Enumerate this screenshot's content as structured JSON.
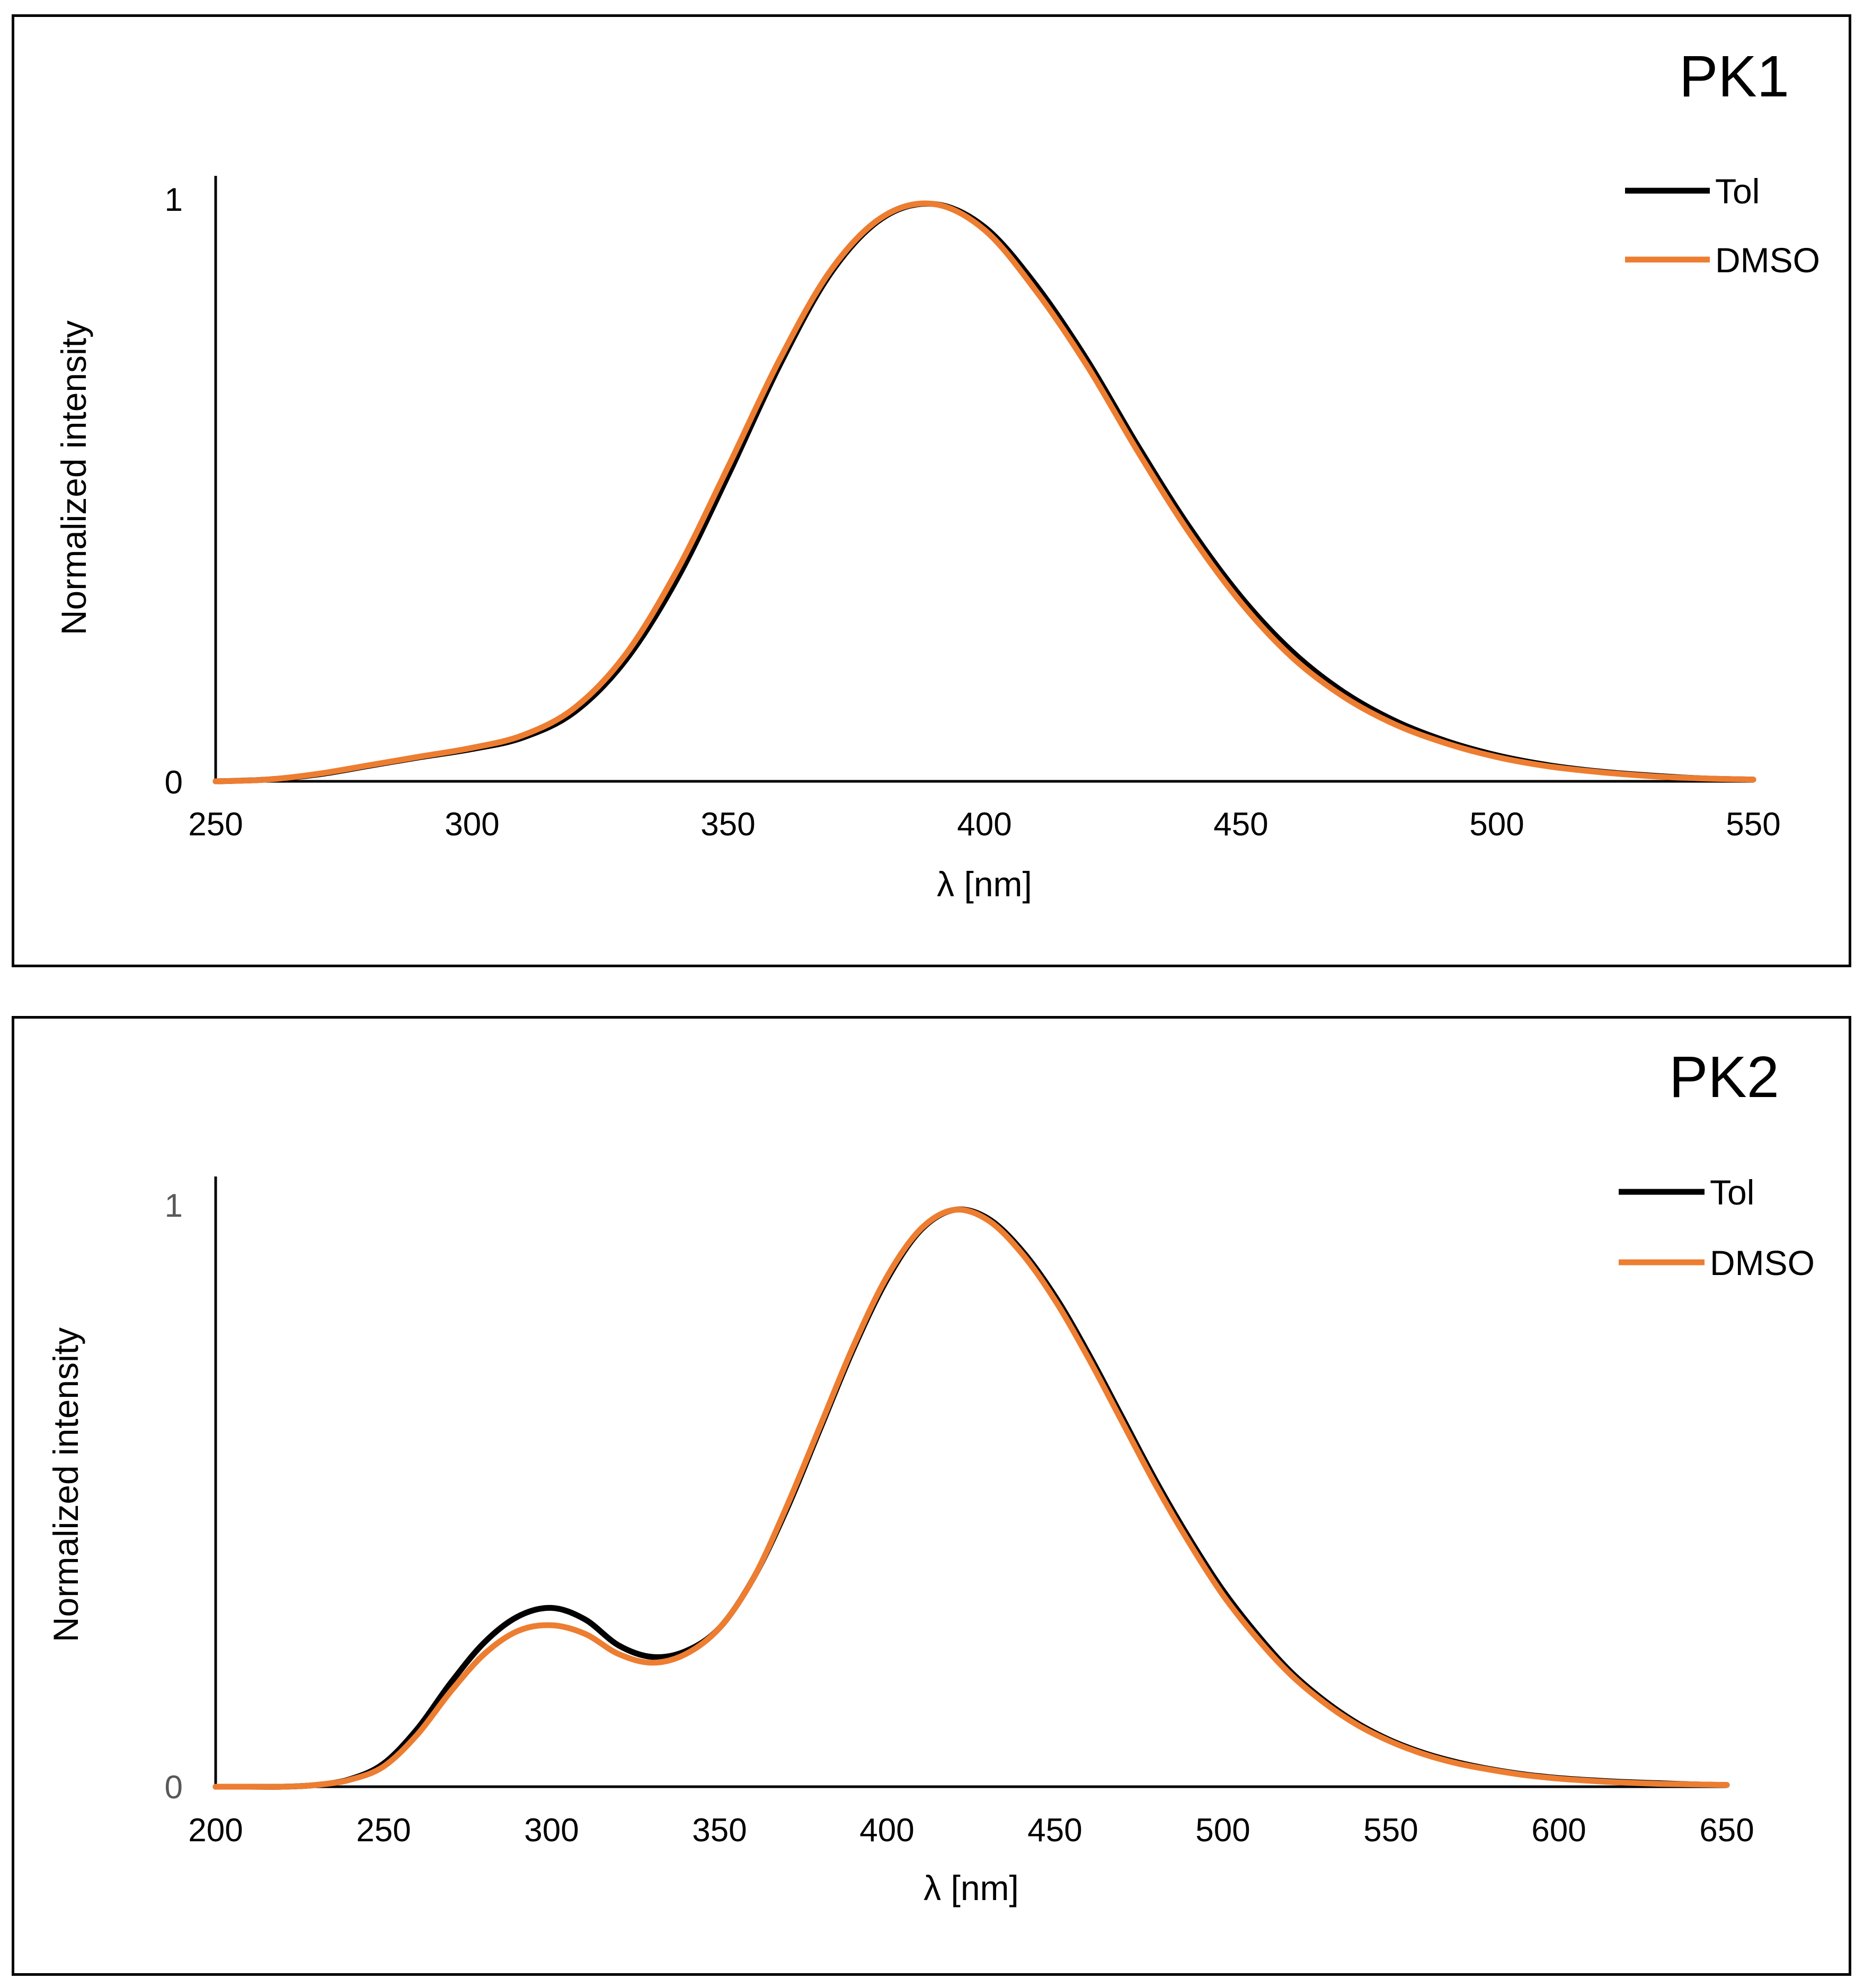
{
  "colors": {
    "tol": "#000000",
    "dmso": "#ED7D31"
  },
  "chart_data": [
    {
      "type": "line",
      "title": "PK1",
      "xlabel": "λ [nm]",
      "ylabel": "Normalized intensity",
      "xlim": [
        250,
        550
      ],
      "ylim": [
        0,
        1
      ],
      "xticks": [
        "250",
        "300",
        "350",
        "400",
        "450",
        "500",
        "550"
      ],
      "yticks": [
        "0",
        "1"
      ],
      "legend": [
        "Tol",
        "DMSO"
      ],
      "series": [
        {
          "name": "Tol",
          "x": [
            250,
            260,
            270,
            280,
            290,
            300,
            310,
            320,
            330,
            340,
            350,
            360,
            370,
            380,
            390,
            400,
            410,
            420,
            430,
            440,
            450,
            460,
            470,
            480,
            490,
            500,
            510,
            520,
            530,
            540,
            550
          ],
          "y": [
            0.0,
            0.003,
            0.012,
            0.027,
            0.042,
            0.056,
            0.076,
            0.12,
            0.21,
            0.35,
            0.53,
            0.72,
            0.88,
            0.975,
            1.0,
            0.96,
            0.86,
            0.73,
            0.58,
            0.44,
            0.32,
            0.225,
            0.155,
            0.105,
            0.07,
            0.045,
            0.028,
            0.017,
            0.01,
            0.005,
            0.003
          ]
        },
        {
          "name": "DMSO",
          "x": [
            250,
            260,
            270,
            280,
            290,
            300,
            310,
            320,
            330,
            340,
            350,
            360,
            370,
            380,
            390,
            400,
            410,
            420,
            430,
            440,
            450,
            460,
            470,
            480,
            490,
            500,
            510,
            520,
            530,
            540,
            550
          ],
          "y": [
            0.0,
            0.003,
            0.013,
            0.028,
            0.043,
            0.058,
            0.08,
            0.127,
            0.22,
            0.365,
            0.545,
            0.73,
            0.885,
            0.977,
            1.0,
            0.955,
            0.85,
            0.72,
            0.57,
            0.43,
            0.31,
            0.215,
            0.147,
            0.099,
            0.066,
            0.042,
            0.026,
            0.016,
            0.009,
            0.005,
            0.003
          ]
        }
      ]
    },
    {
      "type": "line",
      "title": "PK2",
      "xlabel": "λ [nm]",
      "ylabel": "Normalized intensity",
      "xlim": [
        200,
        650
      ],
      "ylim": [
        0,
        1
      ],
      "xticks": [
        "200",
        "250",
        "300",
        "350",
        "400",
        "450",
        "500",
        "550",
        "600",
        "650"
      ],
      "yticks": [
        "0",
        "1"
      ],
      "legend": [
        "Tol",
        "DMSO"
      ],
      "series": [
        {
          "name": "Tol",
          "x": [
            200,
            210,
            220,
            230,
            240,
            250,
            260,
            270,
            280,
            290,
            300,
            310,
            320,
            330,
            340,
            350,
            360,
            370,
            380,
            390,
            400,
            410,
            420,
            430,
            440,
            450,
            460,
            470,
            480,
            490,
            500,
            510,
            520,
            530,
            540,
            550,
            560,
            570,
            580,
            590,
            600,
            610,
            620,
            630,
            640,
            650
          ],
          "y": [
            0.0,
            0.0,
            0.0,
            0.003,
            0.013,
            0.04,
            0.1,
            0.18,
            0.25,
            0.295,
            0.31,
            0.29,
            0.245,
            0.225,
            0.235,
            0.275,
            0.36,
            0.48,
            0.62,
            0.76,
            0.88,
            0.965,
            1.0,
            0.985,
            0.93,
            0.85,
            0.75,
            0.64,
            0.53,
            0.43,
            0.34,
            0.265,
            0.2,
            0.15,
            0.11,
            0.08,
            0.058,
            0.042,
            0.03,
            0.021,
            0.015,
            0.011,
            0.008,
            0.006,
            0.004,
            0.003
          ]
        },
        {
          "name": "DMSO",
          "x": [
            200,
            210,
            220,
            230,
            240,
            250,
            260,
            270,
            280,
            290,
            300,
            310,
            320,
            330,
            340,
            350,
            360,
            370,
            380,
            390,
            400,
            410,
            420,
            430,
            440,
            450,
            460,
            470,
            480,
            490,
            500,
            510,
            520,
            530,
            540,
            550,
            560,
            570,
            580,
            590,
            600,
            610,
            620,
            630,
            640,
            650
          ],
          "y": [
            0.0,
            0.0,
            0.0,
            0.003,
            0.012,
            0.035,
            0.09,
            0.165,
            0.23,
            0.27,
            0.28,
            0.265,
            0.23,
            0.215,
            0.23,
            0.275,
            0.36,
            0.485,
            0.625,
            0.765,
            0.885,
            0.967,
            1.0,
            0.982,
            0.925,
            0.843,
            0.742,
            0.632,
            0.522,
            0.422,
            0.332,
            0.258,
            0.195,
            0.146,
            0.107,
            0.078,
            0.056,
            0.04,
            0.029,
            0.02,
            0.014,
            0.01,
            0.007,
            0.005,
            0.004,
            0.003
          ]
        }
      ]
    }
  ]
}
